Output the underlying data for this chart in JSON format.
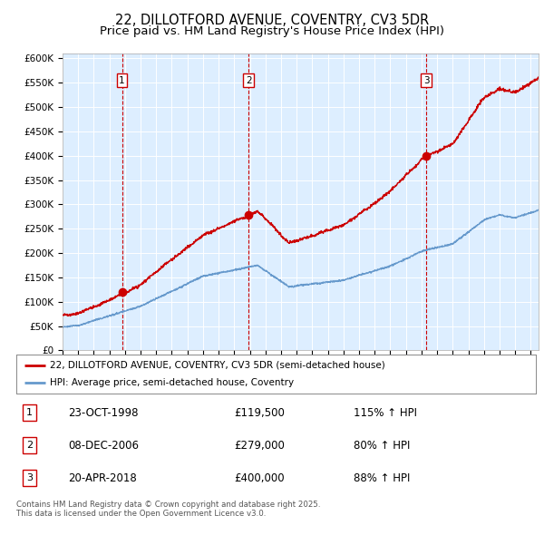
{
  "title": "22, DILLOTFORD AVENUE, COVENTRY, CV3 5DR",
  "subtitle": "Price paid vs. HM Land Registry's House Price Index (HPI)",
  "title_fontsize": 10.5,
  "subtitle_fontsize": 9.5,
  "bg_color": "#ddeeff",
  "fig_bg": "#ffffff",
  "ylim": [
    0,
    600000
  ],
  "yticks": [
    0,
    50000,
    100000,
    150000,
    200000,
    250000,
    300000,
    350000,
    400000,
    450000,
    500000,
    550000,
    600000
  ],
  "ytick_labels": [
    "£0",
    "£50K",
    "£100K",
    "£150K",
    "£200K",
    "£250K",
    "£300K",
    "£350K",
    "£400K",
    "£450K",
    "£500K",
    "£550K",
    "£600K"
  ],
  "xlim_start": 1995.0,
  "xlim_end": 2025.5,
  "sale_dates": [
    1998.81,
    2006.93,
    2018.3
  ],
  "sale_prices": [
    119500,
    279000,
    400000
  ],
  "sale_labels": [
    "1",
    "2",
    "3"
  ],
  "sale_info": [
    {
      "num": "1",
      "date": "23-OCT-1998",
      "price": "£119,500",
      "hpi": "115% ↑ HPI"
    },
    {
      "num": "2",
      "date": "08-DEC-2006",
      "price": "£279,000",
      "hpi": "80% ↑ HPI"
    },
    {
      "num": "3",
      "date": "20-APR-2018",
      "price": "£400,000",
      "hpi": "88% ↑ HPI"
    }
  ],
  "legend_line1": "22, DILLOTFORD AVENUE, COVENTRY, CV3 5DR (semi-detached house)",
  "legend_line2": "HPI: Average price, semi-detached house, Coventry",
  "footer": "Contains HM Land Registry data © Crown copyright and database right 2025.\nThis data is licensed under the Open Government Licence v3.0.",
  "red_color": "#cc0000",
  "blue_color": "#6699cc",
  "vline_color": "#cc0000",
  "grid_color": "#ffffff",
  "dot_color": "#cc0000"
}
